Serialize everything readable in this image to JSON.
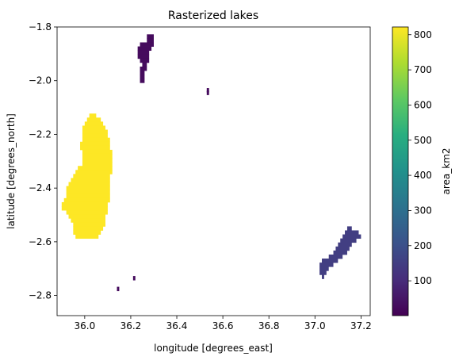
{
  "chart_data": {
    "type": "heatmap",
    "title": "Rasterized lakes",
    "xlabel": "longitude [degrees_east]",
    "ylabel": "latitude [degrees_north]",
    "xlim": [
      35.88,
      37.24
    ],
    "ylim": [
      -2.875,
      -1.8
    ],
    "x_ticks": [
      36.0,
      36.2,
      36.4,
      36.6,
      36.8,
      37.0,
      37.2
    ],
    "x_tick_labels": [
      "36.0",
      "36.2",
      "36.4",
      "36.6",
      "36.8",
      "37.0",
      "37.2"
    ],
    "y_ticks": [
      -1.8,
      -2.0,
      -2.2,
      -2.4,
      -2.6,
      -2.8
    ],
    "y_tick_labels": [
      "−1.8",
      "−2.0",
      "−2.2",
      "−2.4",
      "−2.6",
      "−2.8"
    ],
    "grid": false,
    "colormap": "viridis",
    "colorbar": {
      "label": "area_km2",
      "vmin": 1,
      "vmax": 822,
      "ticks": [
        100,
        200,
        300,
        400,
        500,
        600,
        700,
        800
      ],
      "tick_labels": [
        "100",
        "200",
        "300",
        "400",
        "500",
        "600",
        "700",
        "800"
      ]
    },
    "lakes": [
      {
        "area_km2": 822,
        "cells": [
          [
            -2.13,
            36.02,
            36.05
          ],
          [
            -2.145,
            36.01,
            36.07
          ],
          [
            -2.16,
            36.0,
            36.08
          ],
          [
            -2.175,
            35.99,
            36.09
          ],
          [
            -2.19,
            35.99,
            36.1
          ],
          [
            -2.205,
            35.99,
            36.1
          ],
          [
            -2.22,
            35.99,
            36.11
          ],
          [
            -2.235,
            35.98,
            36.11
          ],
          [
            -2.25,
            35.98,
            36.11
          ],
          [
            -2.265,
            35.99,
            36.12
          ],
          [
            -2.28,
            35.99,
            36.12
          ],
          [
            -2.295,
            35.99,
            36.12
          ],
          [
            -2.31,
            35.99,
            36.12
          ],
          [
            -2.325,
            35.97,
            36.12
          ],
          [
            -2.34,
            35.96,
            36.12
          ],
          [
            -2.355,
            35.95,
            36.11
          ],
          [
            -2.37,
            35.94,
            36.11
          ],
          [
            -2.385,
            35.93,
            36.11
          ],
          [
            -2.4,
            35.92,
            36.11
          ],
          [
            -2.415,
            35.92,
            36.11
          ],
          [
            -2.43,
            35.92,
            36.11
          ],
          [
            -2.445,
            35.91,
            36.11
          ],
          [
            -2.46,
            35.9,
            36.1
          ],
          [
            -2.475,
            35.9,
            36.1
          ],
          [
            -2.49,
            35.92,
            36.1
          ],
          [
            -2.505,
            35.93,
            36.09
          ],
          [
            -2.52,
            35.94,
            36.09
          ],
          [
            -2.535,
            35.95,
            36.09
          ],
          [
            -2.55,
            35.95,
            36.08
          ],
          [
            -2.565,
            35.95,
            36.07
          ],
          [
            -2.58,
            35.96,
            36.06
          ]
        ]
      },
      {
        "area_km2": 150,
        "cells": [
          [
            -2.55,
            37.14,
            37.16
          ],
          [
            -2.565,
            37.13,
            37.19
          ],
          [
            -2.58,
            37.12,
            37.2
          ],
          [
            -2.595,
            37.11,
            37.18
          ],
          [
            -2.61,
            37.1,
            37.16
          ],
          [
            -2.625,
            37.09,
            37.15
          ],
          [
            -2.64,
            37.08,
            37.14
          ],
          [
            -2.655,
            37.06,
            37.12
          ],
          [
            -2.67,
            37.03,
            37.1
          ],
          [
            -2.685,
            37.02,
            37.08
          ],
          [
            -2.7,
            37.02,
            37.06
          ],
          [
            -2.715,
            37.02,
            37.05
          ],
          [
            -2.73,
            37.03,
            37.04
          ]
        ]
      },
      {
        "area_km2": 25,
        "cells": [
          [
            -1.835,
            36.27,
            36.3
          ],
          [
            -1.85,
            36.27,
            36.3
          ],
          [
            -1.865,
            36.24,
            36.3
          ],
          [
            -1.88,
            36.23,
            36.29
          ],
          [
            -1.895,
            36.23,
            36.28
          ],
          [
            -1.91,
            36.23,
            36.28
          ],
          [
            -1.925,
            36.24,
            36.28
          ],
          [
            -1.94,
            36.25,
            36.27
          ],
          [
            -1.955,
            36.24,
            36.27
          ],
          [
            -1.97,
            36.24,
            36.26
          ],
          [
            -1.985,
            36.24,
            36.26
          ],
          [
            -2.0,
            36.24,
            36.26
          ],
          [
            -2.035,
            36.53,
            36.54
          ],
          [
            -2.045,
            36.53,
            36.54
          ],
          [
            -2.735,
            36.21,
            36.22
          ],
          [
            -2.775,
            36.14,
            36.15
          ]
        ]
      }
    ]
  }
}
